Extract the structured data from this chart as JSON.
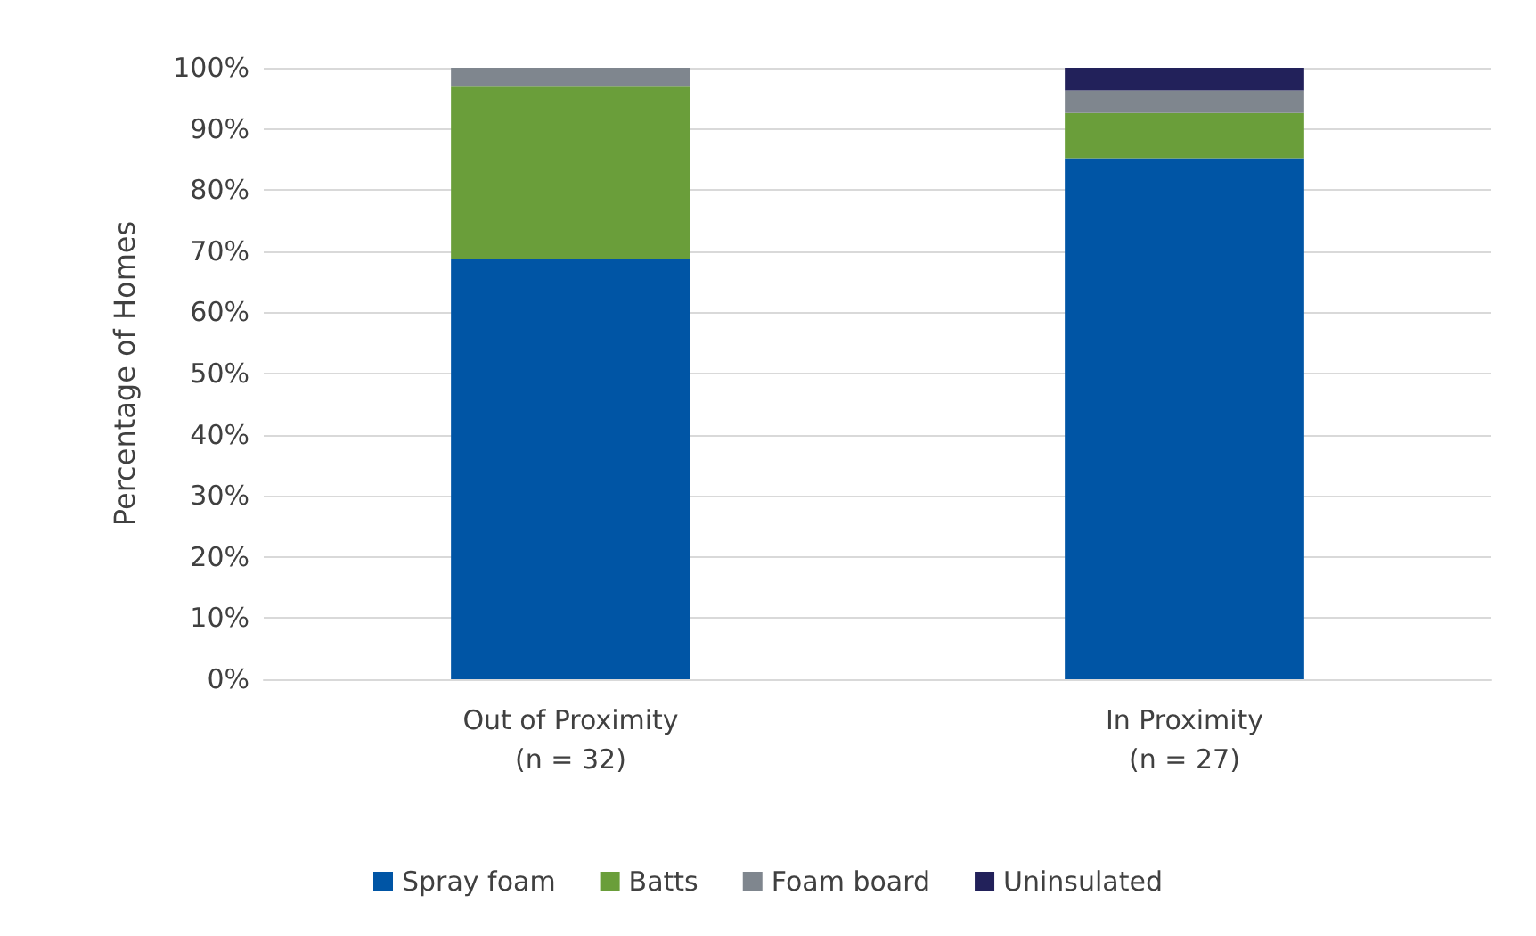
{
  "chart_data": {
    "type": "bar",
    "stacked": true,
    "ylabel": "Percentage of Homes",
    "categories": [
      "Out of Proximity\n(n = 32)",
      "In Proximity\n(n = 27)"
    ],
    "series": [
      {
        "name": "Spray foam",
        "color": "#0055a5",
        "values": [
          68.8,
          85.2
        ]
      },
      {
        "name": "Batts",
        "color": "#6a9e3a",
        "values": [
          28.1,
          7.4
        ]
      },
      {
        "name": "Foam board",
        "color": "#7f868e",
        "values": [
          3.1,
          3.7
        ]
      },
      {
        "name": "Uninsulated",
        "color": "#22215a",
        "values": [
          null,
          3.7
        ]
      }
    ],
    "ylim": [
      0,
      100
    ],
    "yticks": [
      {
        "value": 0,
        "label": "0%"
      },
      {
        "value": 10,
        "label": "10%"
      },
      {
        "value": 20,
        "label": "20%"
      },
      {
        "value": 30,
        "label": "30%"
      },
      {
        "value": 40,
        "label": "40%"
      },
      {
        "value": 50,
        "label": "50%"
      },
      {
        "value": 60,
        "label": "60%"
      },
      {
        "value": 70,
        "label": "70%"
      },
      {
        "value": 80,
        "label": "80%"
      },
      {
        "value": 90,
        "label": "90%"
      },
      {
        "value": 100,
        "label": "100%"
      }
    ],
    "grid": "y",
    "legend": "bottom"
  }
}
